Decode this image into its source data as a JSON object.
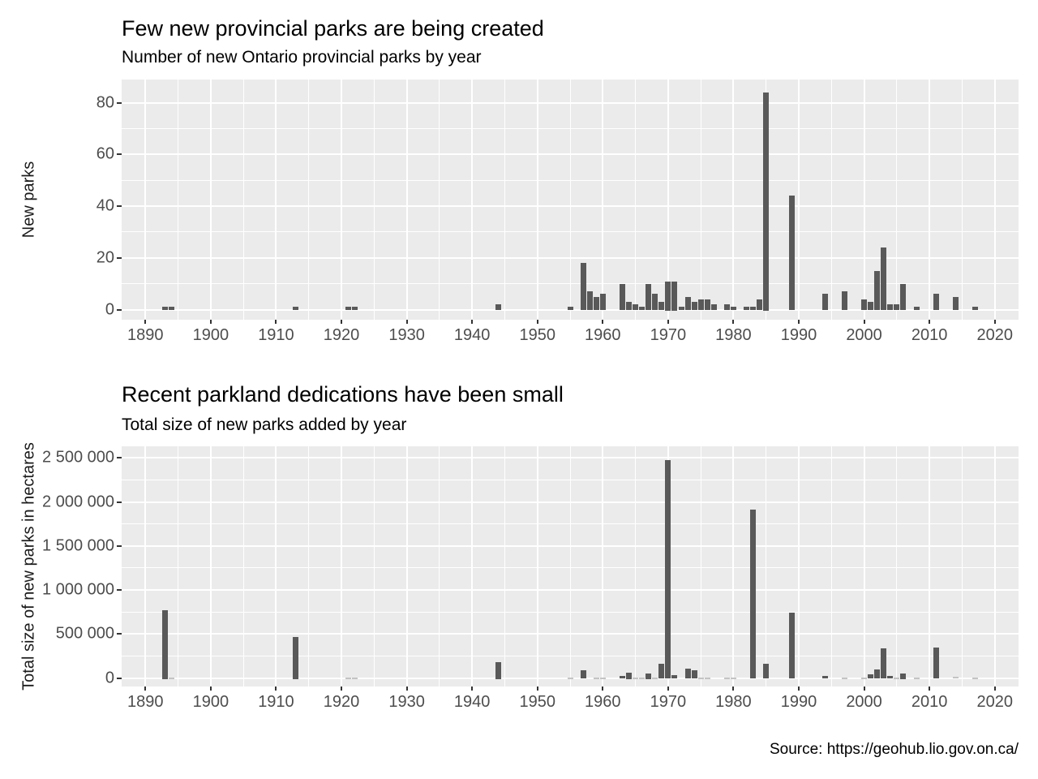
{
  "page": {
    "source_note": "Source: https://geohub.lio.gov.on.ca/"
  },
  "colors": {
    "bar": "#595959",
    "bar_faint": "#c4c4c4",
    "panel_background": "#EBEBEB",
    "gridline": "#ffffff",
    "tick_label": "#4D4D4D"
  },
  "chart_data": [
    {
      "type": "bar",
      "title": "Few new provincial parks are being created",
      "subtitle": "Number of new Ontario provincial parks by year",
      "ylabel": "New parks",
      "xlabel": "",
      "grid": true,
      "legend": false,
      "xlim": [
        1886.5,
        2023.5
      ],
      "ylim": [
        0,
        88
      ],
      "xticks": [
        1890,
        1900,
        1910,
        1920,
        1930,
        1940,
        1950,
        1960,
        1970,
        1980,
        1990,
        2000,
        2010,
        2020
      ],
      "yticks": [
        0,
        20,
        40,
        60,
        80
      ],
      "ytick_labels": [
        "0",
        "20",
        "40",
        "60",
        "80"
      ],
      "x": [
        1893,
        1894,
        1913,
        1921,
        1922,
        1944,
        1955,
        1957,
        1958,
        1959,
        1960,
        1963,
        1964,
        1965,
        1966,
        1967,
        1968,
        1969,
        1970,
        1971,
        1972,
        1973,
        1974,
        1975,
        1976,
        1977,
        1979,
        1980,
        1982,
        1983,
        1984,
        1985,
        1989,
        1994,
        1997,
        2000,
        2001,
        2002,
        2003,
        2004,
        2005,
        2006,
        2008,
        2011,
        2014,
        2017
      ],
      "values": [
        1,
        1,
        1,
        1,
        1,
        2,
        1,
        18,
        7,
        5,
        6,
        10,
        3,
        2,
        1,
        10,
        6,
        3,
        11,
        11,
        1,
        5,
        3,
        4,
        4,
        2,
        2,
        1,
        1,
        1,
        4,
        84,
        44,
        6,
        7,
        4,
        3,
        15,
        24,
        2,
        2,
        10,
        1,
        6,
        5,
        1
      ]
    },
    {
      "type": "bar",
      "title": "Recent parkland dedications have been small",
      "subtitle": "Total size of new parks added by year",
      "ylabel": "Total size of new parks in hectares",
      "xlabel": "",
      "grid": true,
      "legend": false,
      "xlim": [
        1886.5,
        2023.5
      ],
      "ylim": [
        0,
        2630000
      ],
      "xticks": [
        1890,
        1900,
        1910,
        1920,
        1930,
        1940,
        1950,
        1960,
        1970,
        1980,
        1990,
        2000,
        2010,
        2020
      ],
      "yticks": [
        0,
        500000,
        1000000,
        1500000,
        2000000,
        2500000
      ],
      "ytick_labels": [
        "0",
        "500 000",
        "1 000 000",
        "1 500 000",
        "2 000 000",
        "2 500 000"
      ],
      "x": [
        1893,
        1894,
        1913,
        1921,
        1922,
        1944,
        1955,
        1957,
        1959,
        1960,
        1963,
        1964,
        1965,
        1966,
        1967,
        1968,
        1969,
        1970,
        1971,
        1973,
        1974,
        1975,
        1976,
        1979,
        1980,
        1983,
        1985,
        1989,
        1994,
        1997,
        2000,
        2001,
        2002,
        2003,
        2004,
        2005,
        2006,
        2008,
        2011,
        2014,
        2017
      ],
      "values": [
        775000,
        8000,
        470000,
        4000,
        4000,
        180000,
        3000,
        90000,
        8000,
        5000,
        20000,
        65000,
        5000,
        3000,
        55000,
        5000,
        160000,
        2480000,
        30000,
        110000,
        85000,
        6000,
        5000,
        8000,
        4000,
        1910000,
        165000,
        740000,
        20000,
        6000,
        8000,
        45000,
        100000,
        340000,
        25000,
        8000,
        55000,
        3000,
        350000,
        12000,
        2000
      ]
    }
  ]
}
